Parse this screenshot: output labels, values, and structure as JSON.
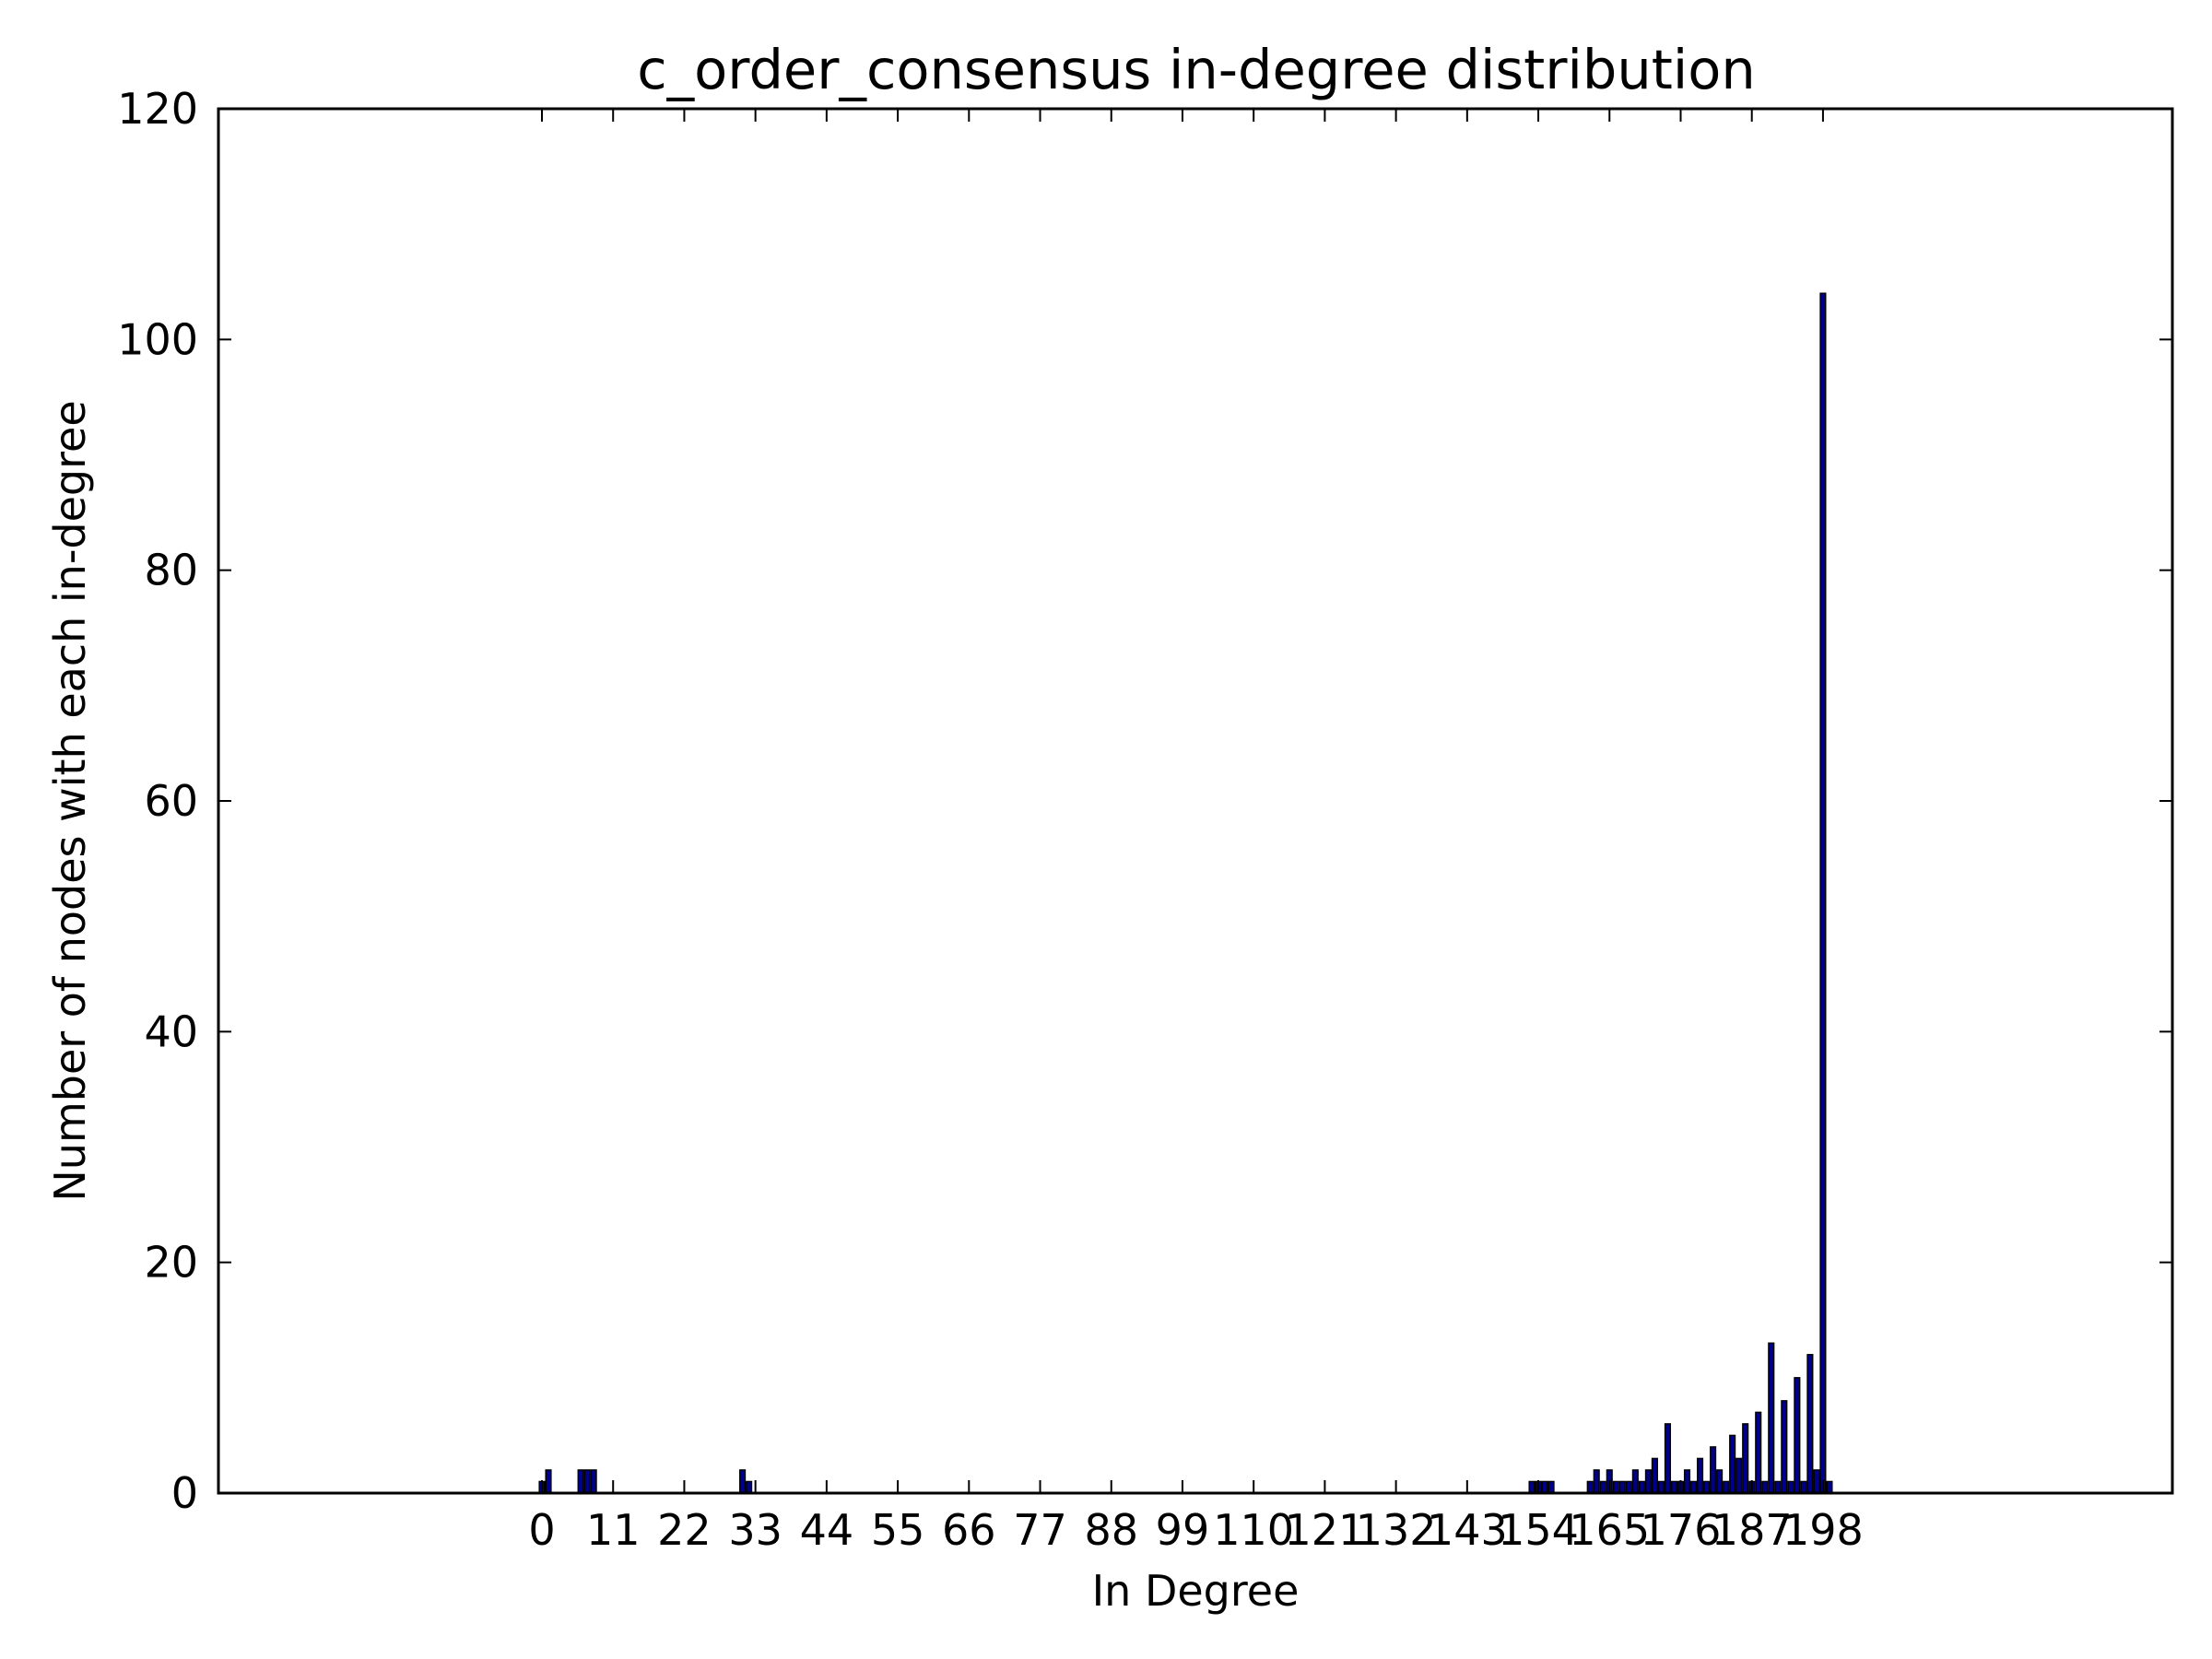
{
  "chart_data": {
    "type": "bar",
    "title": "c_order_consensus in-degree distribution",
    "xlabel": "In Degree",
    "ylabel": "Number of nodes with each in-degree",
    "xlim": [
      -50,
      252
    ],
    "ylim": [
      0,
      120
    ],
    "x_ticks": [
      0,
      11,
      22,
      33,
      44,
      55,
      66,
      77,
      88,
      99,
      110,
      121,
      132,
      143,
      154,
      165,
      176,
      187,
      198
    ],
    "y_ticks": [
      0,
      20,
      40,
      60,
      80,
      100,
      120
    ],
    "grid": false,
    "legend": "none",
    "bar_color": "#00008b",
    "bar_edge_color": "#000000",
    "x": [
      0,
      1,
      6,
      7,
      8,
      31,
      32,
      153,
      154,
      155,
      156,
      162,
      163,
      164,
      165,
      166,
      167,
      168,
      169,
      170,
      171,
      172,
      173,
      174,
      175,
      176,
      177,
      178,
      179,
      180,
      181,
      182,
      183,
      184,
      185,
      186,
      187,
      188,
      189,
      190,
      191,
      192,
      193,
      194,
      195,
      196,
      197,
      198,
      199,
      200,
      201,
      202
    ],
    "values": [
      1,
      2,
      2,
      2,
      2,
      2,
      1,
      1,
      1,
      1,
      1,
      1,
      2,
      1,
      2,
      1,
      1,
      1,
      2,
      1,
      2,
      3,
      1,
      6,
      1,
      1,
      2,
      1,
      3,
      1,
      4,
      2,
      1,
      5,
      3,
      6,
      1,
      7,
      1,
      13,
      1,
      8,
      1,
      10,
      1,
      12,
      2,
      104,
      1,
      0,
      0,
      0
    ]
  }
}
